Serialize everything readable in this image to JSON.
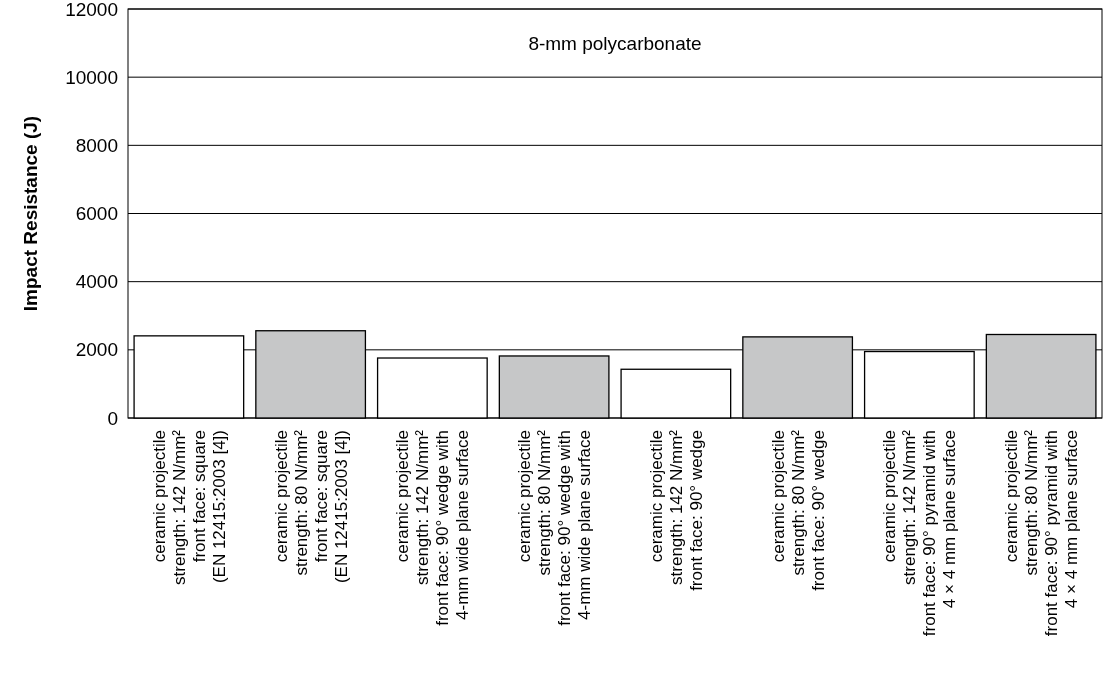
{
  "chart_data": {
    "type": "bar",
    "ylabel": "Impact Resistance (J)",
    "categories": [
      "ceramic projectile\nstrength: 142 N/mm²\nfront face: square\n(EN 12415:2003 [4])",
      "ceramic projectile\nstrength: 80 N/mm²\nfront face: square\n(EN 12415:2003 [4])",
      "ceramic projectile\nstrength: 142 N/mm²\nfront face: 90° wedge with\n4-mm wide plane surface",
      "ceramic projectile\nstrength: 80 N/mm²\nfront face: 90° wedge with\n4-mm wide plane surface",
      "ceramic projectile\nstrength: 142 N/mm²\nfront face: 90° wedge",
      "ceramic projectile\nstrength: 80 N/mm²\nfront face: 90° wedge",
      "ceramic projectile\nstrength: 142 N/mm²\nfront face: 90° pyramid with\n4 × 4 mm plane surface",
      "ceramic projectile\nstrength: 80 N/mm²\nfront face: 90° pyramid with\n4 × 4 mm plane surface"
    ],
    "values": [
      2410,
      2560,
      1760,
      1820,
      1430,
      2380,
      1950,
      2450
    ],
    "colors": [
      "#ffffff",
      "#c6c7c8",
      "#ffffff",
      "#c6c7c8",
      "#ffffff",
      "#c6c7c8",
      "#ffffff",
      "#c6c7c8"
    ],
    "ylim": [
      0,
      12000
    ],
    "yticks": [
      0,
      2000,
      4000,
      6000,
      8000,
      10000,
      12000
    ],
    "grid": "y",
    "annotations": [
      "8-mm polycarbonate"
    ]
  }
}
